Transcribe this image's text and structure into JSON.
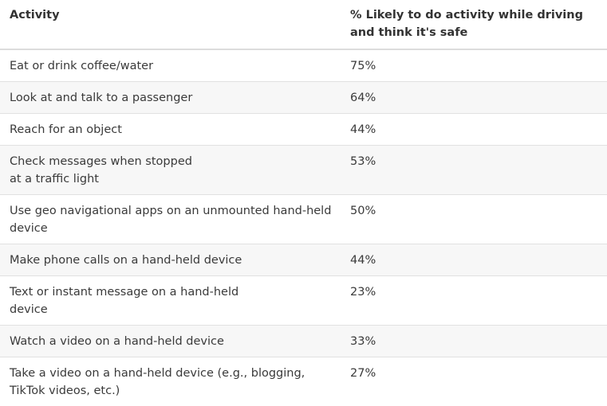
{
  "table": {
    "headers": [
      "Activity",
      "% Likely to do activity while driving and think it's safe"
    ],
    "rows": [
      {
        "activity": "Eat or drink coffee/water",
        "percent": "75%"
      },
      {
        "activity": "Look at and talk to a passenger",
        "percent": "64%"
      },
      {
        "activity": "Reach for an object",
        "percent": "44%"
      },
      {
        "activity": "Check messages when stopped at a traffic light",
        "percent": "53%"
      },
      {
        "activity": "Use geo navigational apps on an unmounted hand-held device",
        "percent": "50%"
      },
      {
        "activity": "Make phone calls on a hand-held device",
        "percent": "44%"
      },
      {
        "activity": "Text or instant message on a hand-held device",
        "percent": "23%"
      },
      {
        "activity": "Watch a video on a hand-held device",
        "percent": "33%"
      },
      {
        "activity": "Take a video on a hand-held device (e.g., blogging, TikTok videos, etc.)",
        "percent": "27%"
      }
    ]
  }
}
